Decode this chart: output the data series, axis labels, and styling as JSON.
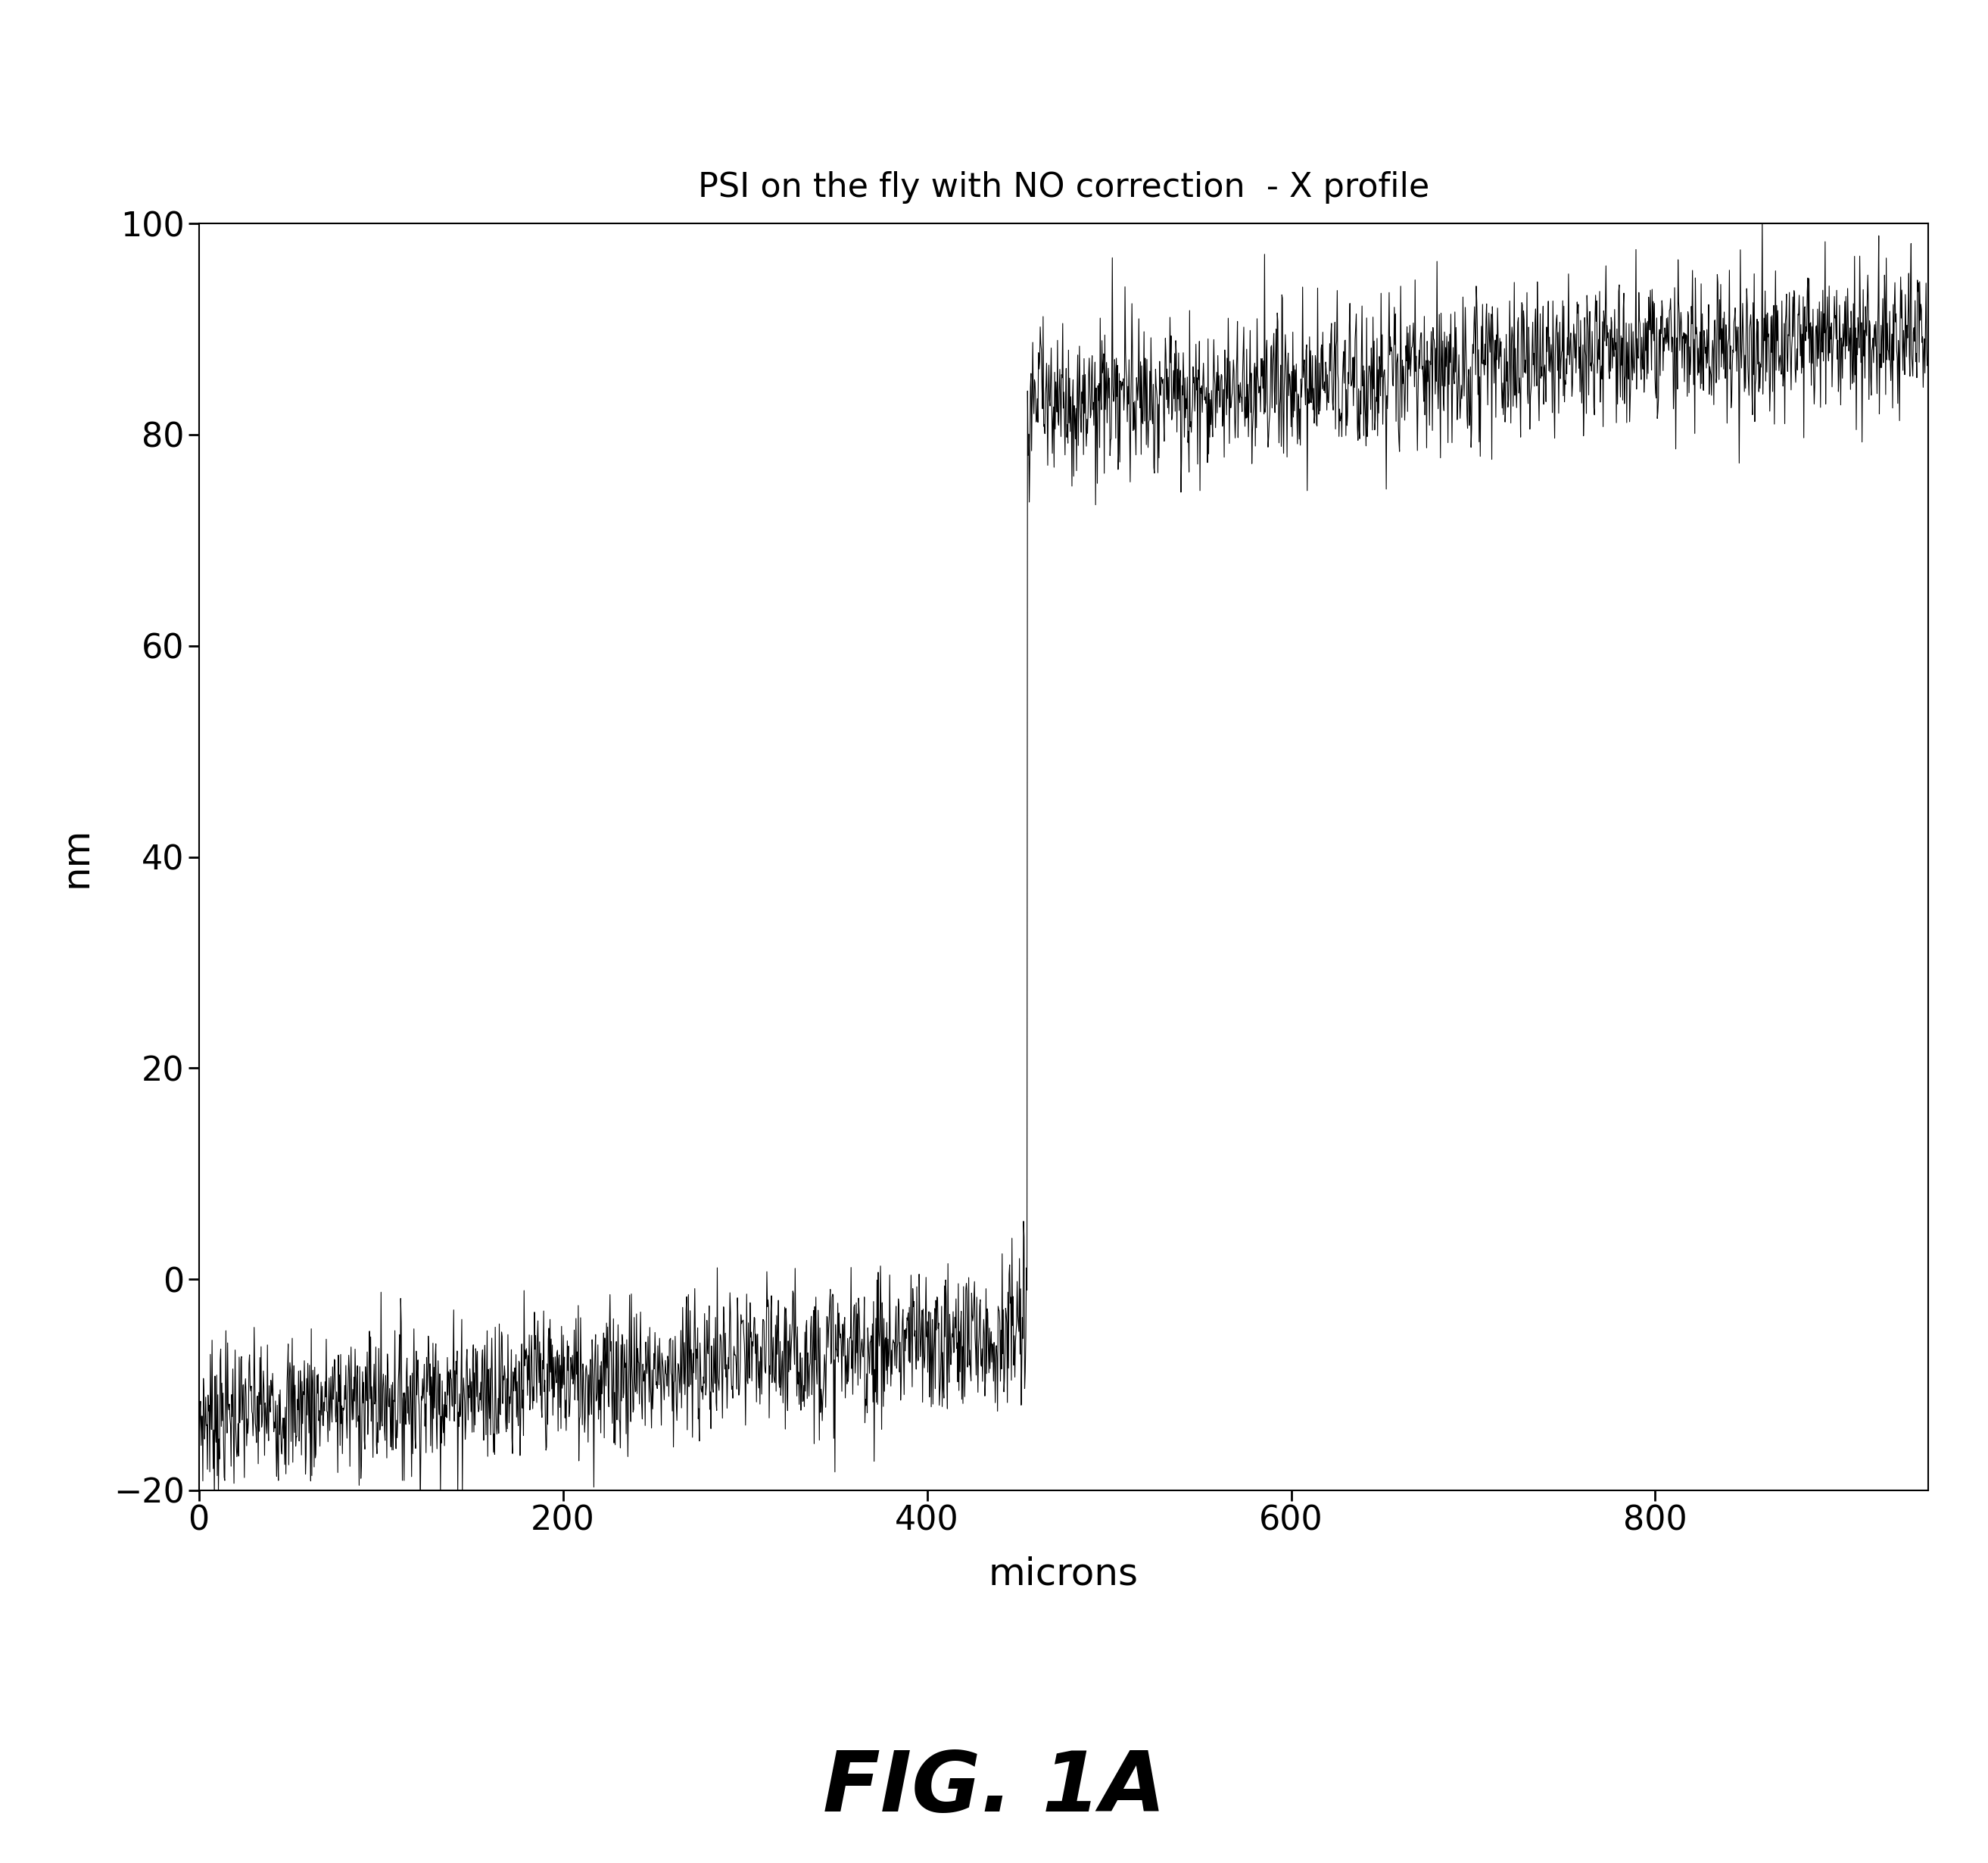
{
  "title": "PSI on the fly with NO correction  - X profile",
  "xlabel": "microns",
  "ylabel": "nm",
  "xlim": [
    0,
    950
  ],
  "ylim": [
    -20,
    100
  ],
  "xticks": [
    0,
    200,
    400,
    600,
    800
  ],
  "yticks": [
    -20,
    0,
    20,
    40,
    60,
    80,
    100
  ],
  "line_color": "#000000",
  "background_color": "#ffffff",
  "fig_label": "FIG. 1A",
  "step_x": 455,
  "low_level_start": -13,
  "low_level_end": -5,
  "high_level_start": 83,
  "high_level_end": 90,
  "noise_low": 3.5,
  "noise_high": 3.5,
  "n_points": 3000,
  "seed": 7
}
